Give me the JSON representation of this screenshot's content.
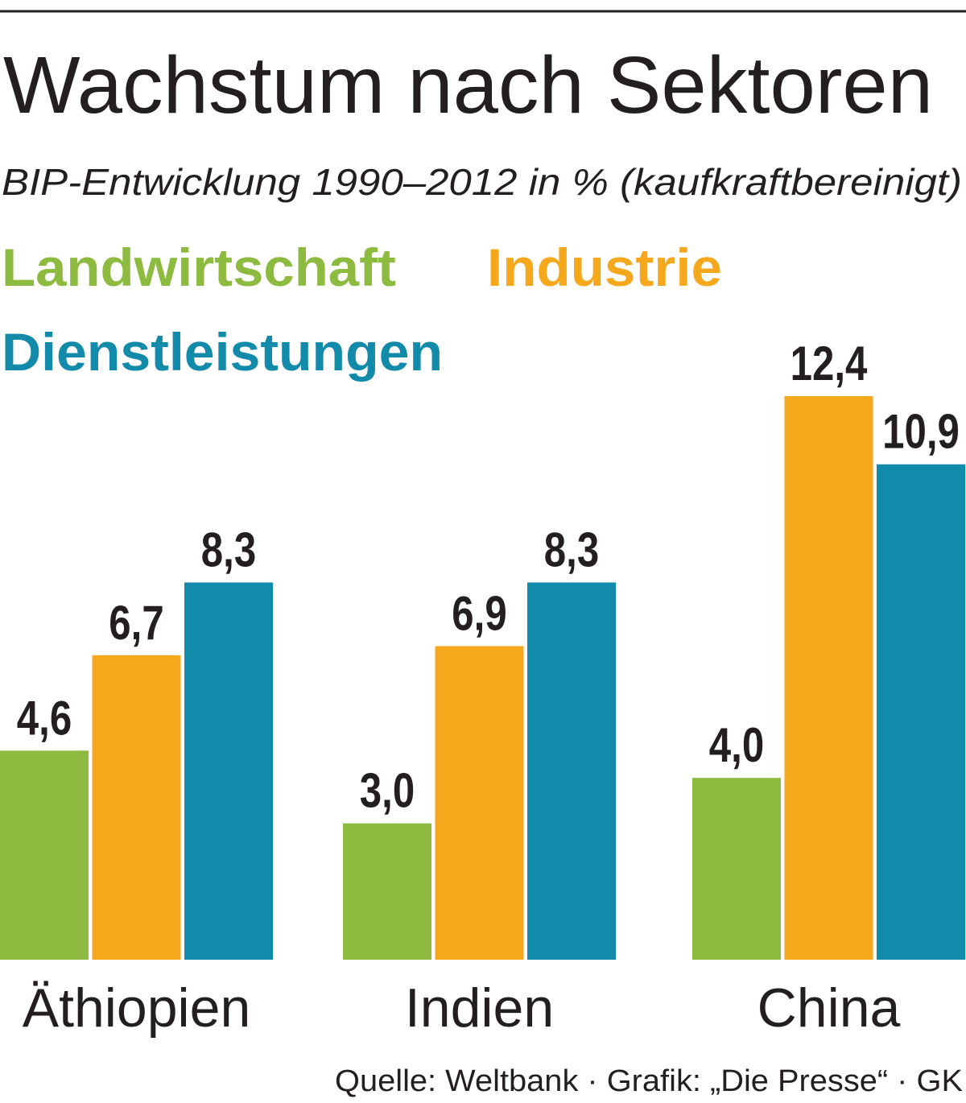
{
  "chart_data": {
    "type": "bar",
    "title": "Wachstum nach Sektoren",
    "subtitle": "BIP-Entwicklung 1990–2012 in % (kaufkraftbereinigt)",
    "source": "Quelle: Weltbank · Grafik: „Die Presse“ · GK",
    "categories": [
      "Äthiopien",
      "Indien",
      "China"
    ],
    "series": [
      {
        "name": "Landwirtschaft",
        "color": "#8cbb3f",
        "values": [
          4.6,
          3.0,
          4.0
        ],
        "value_labels": [
          "4,6",
          "3,0",
          "4,0"
        ]
      },
      {
        "name": "Industrie",
        "color": "#f5a81c",
        "values": [
          6.7,
          6.9,
          12.4
        ],
        "value_labels": [
          "6,7",
          "6,9",
          "12,4"
        ]
      },
      {
        "name": "Dienstleistungen",
        "color": "#128aaa",
        "values": [
          8.3,
          8.3,
          10.9
        ],
        "value_labels": [
          "8,3",
          "8,3",
          "10,9"
        ]
      }
    ]
  }
}
